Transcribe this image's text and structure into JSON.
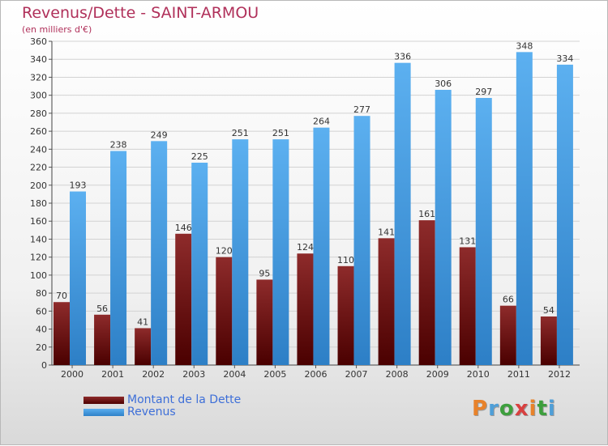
{
  "title": "Revenus/Dette - SAINT-ARMOU",
  "subtitle": "(en milliers d'€)",
  "brand": {
    "text": "Proxiti",
    "colors": [
      "#e8822a",
      "#4f9fd8",
      "#3d9f3d",
      "#d84040",
      "#e8822a",
      "#3d9f3d",
      "#4f9fd8"
    ]
  },
  "chart_data": {
    "type": "bar",
    "title": "Revenus/Dette - SAINT-ARMOU",
    "subtitle": "(en milliers d'€)",
    "xlabel": "",
    "ylabel": "",
    "ylim": [
      0,
      360
    ],
    "yticks": [
      0,
      20,
      40,
      60,
      80,
      100,
      120,
      140,
      160,
      180,
      200,
      220,
      240,
      260,
      280,
      300,
      320,
      340,
      360
    ],
    "categories": [
      "2000",
      "2001",
      "2002",
      "2003",
      "2004",
      "2005",
      "2006",
      "2007",
      "2008",
      "2009",
      "2010",
      "2011",
      "2012"
    ],
    "series": [
      {
        "name": "Montant de la Dette",
        "color": "#7a1a1a",
        "values": [
          70,
          56,
          41,
          146,
          120,
          95,
          124,
          110,
          141,
          161,
          131,
          66,
          54
        ]
      },
      {
        "name": "Revenus",
        "color": "#4fa3e8",
        "values": [
          193,
          238,
          249,
          225,
          251,
          251,
          264,
          277,
          336,
          306,
          297,
          348,
          334
        ]
      }
    ],
    "grid": true,
    "legend": "bottom-left"
  }
}
